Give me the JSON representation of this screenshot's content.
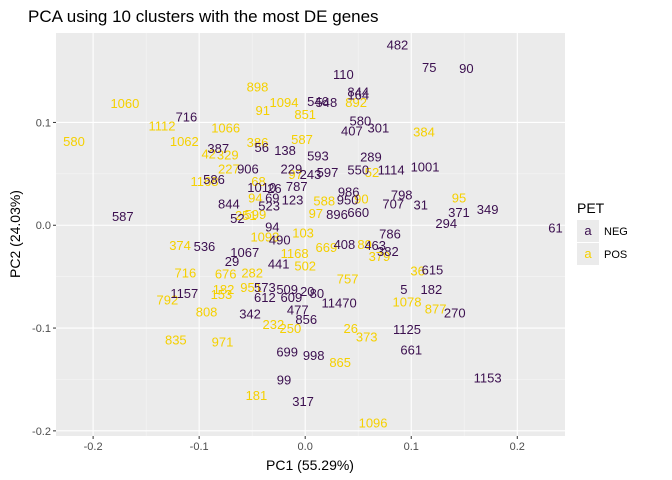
{
  "chart_data": {
    "type": "scatter",
    "title": "PCA using 10 clusters with the most DE genes",
    "xlabel": "PC1 (55.29%)",
    "ylabel": "PC2 (24.03%)",
    "xlim": [
      -0.235,
      0.245
    ],
    "ylim": [
      -0.205,
      0.187
    ],
    "xticks": [
      -0.2,
      -0.1,
      0.0,
      0.1,
      0.2
    ],
    "xtick_labels": [
      "-0.2",
      "-0.1",
      "0.0",
      "0.1",
      "0.2"
    ],
    "yticks": [
      0.1,
      0.0,
      -0.1,
      -0.2
    ],
    "ytick_labels": [
      "0.1",
      "0.0",
      "-0.1",
      "-0.2"
    ],
    "grid": true,
    "legend": {
      "title": "PET",
      "position": "right",
      "glyph": "a",
      "entries": [
        {
          "label": "NEG",
          "color": "#3b0f4f"
        },
        {
          "label": "POS",
          "color": "#f5d000"
        }
      ]
    },
    "series": [
      {
        "name": "NEG",
        "color": "#3b0f4f",
        "points": [
          {
            "x": 0.087,
            "y": 0.176,
            "label": "482"
          },
          {
            "x": 0.117,
            "y": 0.154,
            "label": "75"
          },
          {
            "x": 0.152,
            "y": 0.153,
            "label": "90"
          },
          {
            "x": 0.036,
            "y": 0.147,
            "label": "110"
          },
          {
            "x": 0.05,
            "y": 0.13,
            "label": "844"
          },
          {
            "x": 0.05,
            "y": 0.127,
            "label": "164"
          },
          {
            "x": 0.012,
            "y": 0.121,
            "label": "546"
          },
          {
            "x": 0.02,
            "y": 0.12,
            "label": "548"
          },
          {
            "x": -0.112,
            "y": 0.106,
            "label": "716"
          },
          {
            "x": 0.052,
            "y": 0.102,
            "label": "580"
          },
          {
            "x": 0.044,
            "y": 0.092,
            "label": "407"
          },
          {
            "x": 0.069,
            "y": 0.095,
            "label": "301"
          },
          {
            "x": -0.082,
            "y": 0.075,
            "label": "387"
          },
          {
            "x": -0.041,
            "y": 0.076,
            "label": "56"
          },
          {
            "x": -0.019,
            "y": 0.073,
            "label": "138"
          },
          {
            "x": 0.012,
            "y": 0.068,
            "label": "593"
          },
          {
            "x": 0.062,
            "y": 0.067,
            "label": "289"
          },
          {
            "x": -0.054,
            "y": 0.055,
            "label": "906"
          },
          {
            "x": -0.013,
            "y": 0.055,
            "label": "229"
          },
          {
            "x": 0.005,
            "y": 0.05,
            "label": "243"
          },
          {
            "x": 0.021,
            "y": 0.052,
            "label": "597"
          },
          {
            "x": 0.05,
            "y": 0.054,
            "label": "550"
          },
          {
            "x": 0.081,
            "y": 0.054,
            "label": "1114"
          },
          {
            "x": 0.113,
            "y": 0.057,
            "label": "1001"
          },
          {
            "x": -0.086,
            "y": 0.045,
            "label": "586"
          },
          {
            "x": -0.041,
            "y": 0.037,
            "label": "1010"
          },
          {
            "x": -0.029,
            "y": 0.036,
            "label": "26"
          },
          {
            "x": -0.008,
            "y": 0.038,
            "label": "787"
          },
          {
            "x": 0.041,
            "y": 0.033,
            "label": "986"
          },
          {
            "x": -0.031,
            "y": 0.027,
            "label": "69"
          },
          {
            "x": -0.012,
            "y": 0.025,
            "label": "123"
          },
          {
            "x": 0.04,
            "y": 0.025,
            "label": "950"
          },
          {
            "x": 0.091,
            "y": 0.03,
            "label": "798"
          },
          {
            "x": 0.083,
            "y": 0.021,
            "label": "707"
          },
          {
            "x": 0.109,
            "y": 0.02,
            "label": "31"
          },
          {
            "x": -0.072,
            "y": 0.021,
            "label": "844"
          },
          {
            "x": -0.034,
            "y": 0.019,
            "label": "523"
          },
          {
            "x": 0.145,
            "y": 0.013,
            "label": "371"
          },
          {
            "x": 0.172,
            "y": 0.016,
            "label": "349"
          },
          {
            "x": 0.03,
            "y": 0.011,
            "label": "896"
          },
          {
            "x": 0.05,
            "y": 0.013,
            "label": "660"
          },
          {
            "x": -0.172,
            "y": 0.009,
            "label": "587"
          },
          {
            "x": -0.064,
            "y": 0.007,
            "label": "52"
          },
          {
            "x": 0.133,
            "y": 0.002,
            "label": "294"
          },
          {
            "x": 0.236,
            "y": -0.002,
            "label": "61"
          },
          {
            "x": -0.031,
            "y": -0.001,
            "label": "94"
          },
          {
            "x": 0.08,
            "y": -0.008,
            "label": "786"
          },
          {
            "x": -0.024,
            "y": -0.014,
            "label": "490"
          },
          {
            "x": -0.095,
            "y": -0.02,
            "label": "536"
          },
          {
            "x": 0.037,
            "y": -0.018,
            "label": "408"
          },
          {
            "x": 0.066,
            "y": -0.019,
            "label": "463"
          },
          {
            "x": 0.078,
            "y": -0.025,
            "label": "382"
          },
          {
            "x": -0.057,
            "y": -0.026,
            "label": "1067"
          },
          {
            "x": -0.069,
            "y": -0.035,
            "label": "29"
          },
          {
            "x": -0.025,
            "y": -0.037,
            "label": "441"
          },
          {
            "x": 0.12,
            "y": -0.043,
            "label": "615"
          },
          {
            "x": 0.093,
            "y": -0.062,
            "label": "5"
          },
          {
            "x": 0.119,
            "y": -0.062,
            "label": "182"
          },
          {
            "x": -0.038,
            "y": -0.06,
            "label": "573"
          },
          {
            "x": -0.017,
            "y": -0.062,
            "label": "509"
          },
          {
            "x": 0.002,
            "y": -0.064,
            "label": "20"
          },
          {
            "x": 0.011,
            "y": -0.066,
            "label": "80"
          },
          {
            "x": -0.114,
            "y": -0.066,
            "label": "1157"
          },
          {
            "x": -0.038,
            "y": -0.07,
            "label": "612"
          },
          {
            "x": -0.013,
            "y": -0.07,
            "label": "609"
          },
          {
            "x": 0.032,
            "y": -0.075,
            "label": "11470"
          },
          {
            "x": -0.007,
            "y": -0.082,
            "label": "477"
          },
          {
            "x": -0.052,
            "y": -0.086,
            "label": "342"
          },
          {
            "x": 0.001,
            "y": -0.091,
            "label": "856"
          },
          {
            "x": 0.141,
            "y": -0.085,
            "label": "270"
          },
          {
            "x": 0.096,
            "y": -0.101,
            "label": "1125"
          },
          {
            "x": -0.017,
            "y": -0.123,
            "label": "699"
          },
          {
            "x": 0.008,
            "y": -0.126,
            "label": "998"
          },
          {
            "x": 0.1,
            "y": -0.121,
            "label": "661"
          },
          {
            "x": 0.172,
            "y": -0.148,
            "label": "1153"
          },
          {
            "x": -0.02,
            "y": -0.15,
            "label": "99"
          },
          {
            "x": -0.002,
            "y": -0.171,
            "label": "317"
          }
        ]
      },
      {
        "name": "POS",
        "color": "#f5d000",
        "points": [
          {
            "x": -0.045,
            "y": 0.135,
            "label": "898"
          },
          {
            "x": -0.17,
            "y": 0.119,
            "label": "1060"
          },
          {
            "x": -0.02,
            "y": 0.12,
            "label": "1094"
          },
          {
            "x": 0.048,
            "y": 0.12,
            "label": "892"
          },
          {
            "x": -0.04,
            "y": 0.112,
            "label": "91"
          },
          {
            "x": 0.0,
            "y": 0.108,
            "label": "851"
          },
          {
            "x": -0.135,
            "y": 0.097,
            "label": "1112"
          },
          {
            "x": -0.075,
            "y": 0.095,
            "label": "1066"
          },
          {
            "x": 0.112,
            "y": 0.091,
            "label": "384"
          },
          {
            "x": -0.218,
            "y": 0.082,
            "label": "580"
          },
          {
            "x": -0.114,
            "y": 0.082,
            "label": "1062"
          },
          {
            "x": -0.003,
            "y": 0.084,
            "label": "587"
          },
          {
            "x": -0.045,
            "y": 0.081,
            "label": "386"
          },
          {
            "x": -0.091,
            "y": 0.07,
            "label": "42"
          },
          {
            "x": -0.073,
            "y": 0.069,
            "label": "329"
          },
          {
            "x": -0.072,
            "y": 0.055,
            "label": "227"
          },
          {
            "x": -0.009,
            "y": 0.05,
            "label": "97"
          },
          {
            "x": 0.063,
            "y": 0.052,
            "label": "52"
          },
          {
            "x": -0.095,
            "y": 0.043,
            "label": "1168"
          },
          {
            "x": -0.044,
            "y": 0.043,
            "label": "68"
          },
          {
            "x": -0.047,
            "y": 0.027,
            "label": "94"
          },
          {
            "x": 0.018,
            "y": 0.024,
            "label": "588"
          },
          {
            "x": 0.053,
            "y": 0.026,
            "label": "90"
          },
          {
            "x": -0.047,
            "y": 0.011,
            "label": "599"
          },
          {
            "x": 0.01,
            "y": 0.012,
            "label": "97"
          },
          {
            "x": -0.056,
            "y": 0.01,
            "label": "251"
          },
          {
            "x": 0.145,
            "y": 0.027,
            "label": "95"
          },
          {
            "x": -0.038,
            "y": -0.011,
            "label": "1093"
          },
          {
            "x": -0.002,
            "y": -0.007,
            "label": "103"
          },
          {
            "x": 0.02,
            "y": -0.021,
            "label": "669"
          },
          {
            "x": 0.056,
            "y": -0.018,
            "label": "89"
          },
          {
            "x": -0.118,
            "y": -0.019,
            "label": "374"
          },
          {
            "x": 0.07,
            "y": -0.03,
            "label": "379"
          },
          {
            "x": -0.01,
            "y": -0.027,
            "label": "1168"
          },
          {
            "x": 0.0,
            "y": -0.039,
            "label": "502"
          },
          {
            "x": 0.04,
            "y": -0.052,
            "label": "757"
          },
          {
            "x": -0.113,
            "y": -0.046,
            "label": "716"
          },
          {
            "x": -0.075,
            "y": -0.047,
            "label": "676"
          },
          {
            "x": -0.05,
            "y": -0.046,
            "label": "282"
          },
          {
            "x": 0.106,
            "y": -0.044,
            "label": "36"
          },
          {
            "x": -0.077,
            "y": -0.062,
            "label": "182"
          },
          {
            "x": -0.051,
            "y": -0.06,
            "label": "951"
          },
          {
            "x": -0.079,
            "y": -0.067,
            "label": "153"
          },
          {
            "x": 0.096,
            "y": -0.074,
            "label": "1078"
          },
          {
            "x": -0.13,
            "y": -0.072,
            "label": "792"
          },
          {
            "x": 0.123,
            "y": -0.081,
            "label": "877"
          },
          {
            "x": -0.093,
            "y": -0.084,
            "label": "808"
          },
          {
            "x": -0.03,
            "y": -0.096,
            "label": "232"
          },
          {
            "x": -0.014,
            "y": -0.1,
            "label": "250"
          },
          {
            "x": 0.043,
            "y": -0.1,
            "label": "26"
          },
          {
            "x": 0.058,
            "y": -0.108,
            "label": "373"
          },
          {
            "x": -0.122,
            "y": -0.111,
            "label": "835"
          },
          {
            "x": -0.078,
            "y": -0.113,
            "label": "971"
          },
          {
            "x": 0.033,
            "y": -0.133,
            "label": "865"
          },
          {
            "x": -0.046,
            "y": -0.165,
            "label": "181"
          },
          {
            "x": 0.064,
            "y": -0.192,
            "label": "1096"
          }
        ]
      }
    ]
  }
}
